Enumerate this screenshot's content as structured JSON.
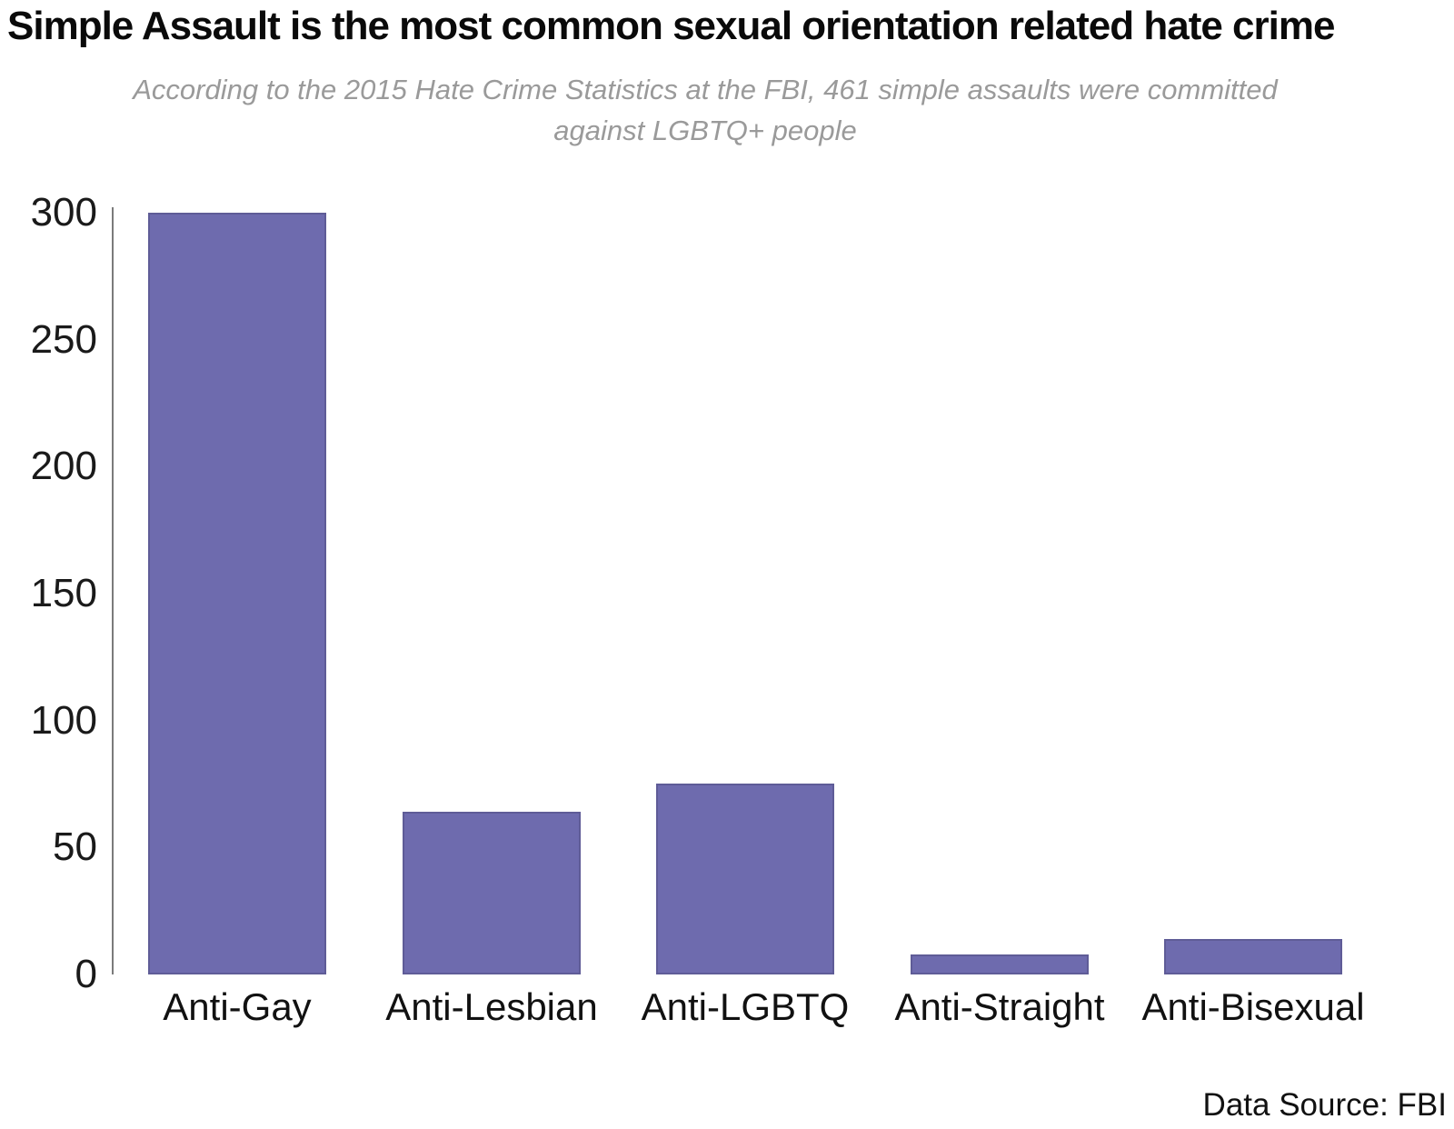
{
  "page": {
    "title": "Simple Assault is the most common sexual orientation related hate crime",
    "subtitle_line1": "According to the 2015 Hate Crime Statistics at the FBI, 461 simple assaults were committed",
    "subtitle_line2": "against LGBTQ+ people",
    "footer": "Data Source: FBI"
  },
  "chart_data": {
    "type": "bar",
    "title": "Simple Assault is the most common sexual orientation related hate crime",
    "subtitle": "According to the 2015 Hate Crime Statistics at the FBI, 461 simple assaults were committed against LGBTQ+ people",
    "categories": [
      "Anti-Gay",
      "Anti-Lesbian",
      "Anti-LGBTQ",
      "Anti-Straight",
      "Anti-Bisexual"
    ],
    "values": [
      300,
      64,
      75,
      8,
      14
    ],
    "total_stated": 461,
    "xlabel": "",
    "ylabel": "",
    "ylim": [
      0,
      300
    ],
    "yticks": [
      0,
      50,
      100,
      150,
      200,
      250,
      300
    ],
    "grid": false,
    "legend": false,
    "bar_color": "#6e6bae",
    "bar_border_color": "#5f5c97",
    "axis_line_color": "#7b7b7b",
    "tick_label_color": "#1a1a1a",
    "subtitle_color": "#9a9a9a",
    "source_label": "Data Source: FBI"
  }
}
